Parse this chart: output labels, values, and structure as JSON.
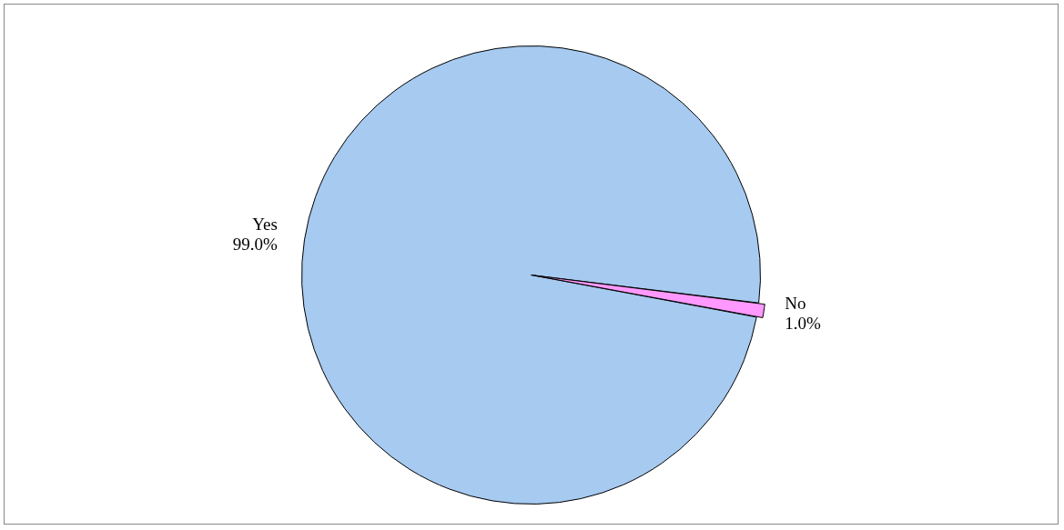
{
  "chart_data": {
    "type": "pie",
    "categories": [
      "Yes",
      "No"
    ],
    "values": [
      99.0,
      1.0
    ],
    "value_labels": [
      "99.0%",
      "1.0%"
    ],
    "colors": [
      "#a6caf0",
      "#ff99ff"
    ],
    "legend": false
  }
}
